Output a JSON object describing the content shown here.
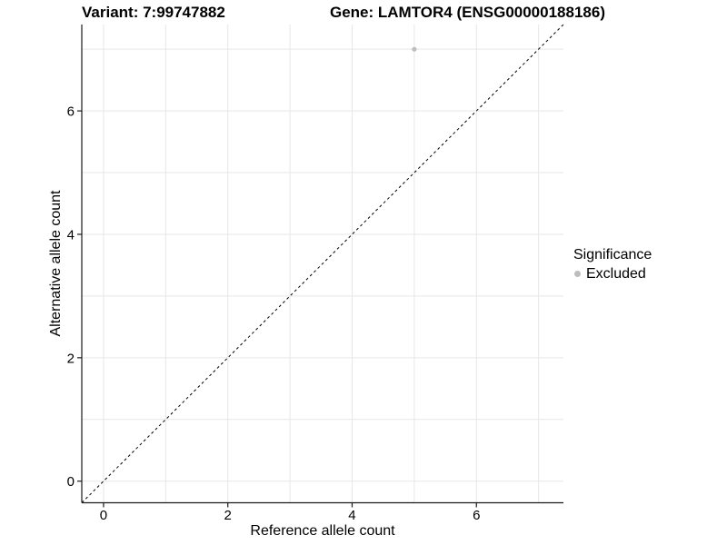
{
  "titles": {
    "variant": "Variant: 7:99747882",
    "gene": "Gene: LAMTOR4 (ENSG00000188186)"
  },
  "chart_data": {
    "type": "scatter",
    "title_left": "Variant: 7:99747882",
    "title_right": "Gene: LAMTOR4 (ENSG00000188186)",
    "xlabel": "Reference allele count",
    "ylabel": "Alternative allele count",
    "xlim": [
      -0.35,
      7.4
    ],
    "ylim": [
      -0.35,
      7.4
    ],
    "xticks": [
      0,
      2,
      4,
      6
    ],
    "yticks": [
      0,
      2,
      4,
      6
    ],
    "grid_x": [
      0,
      1,
      2,
      3,
      4,
      5,
      6,
      7
    ],
    "grid_y": [
      0,
      1,
      2,
      3,
      4,
      5,
      6,
      7
    ],
    "grid": true,
    "points": [
      {
        "x": 5,
        "y": 7,
        "series": "Excluded"
      }
    ],
    "reference_line": {
      "type": "identity",
      "style": "dashed",
      "x1": -0.35,
      "y1": -0.35,
      "x2": 7.4,
      "y2": 7.4
    },
    "legend": {
      "position": "right",
      "title": "Significance",
      "entries": [
        {
          "label": "Excluded",
          "color": "#bdbdbd",
          "marker": "circle"
        }
      ]
    },
    "colors": {
      "point": "#bdbdbd",
      "grid": "#e7e7e7",
      "axis": "#1a1a1a",
      "text": "#000000",
      "reference_line": "#000000",
      "background": "#ffffff"
    }
  }
}
